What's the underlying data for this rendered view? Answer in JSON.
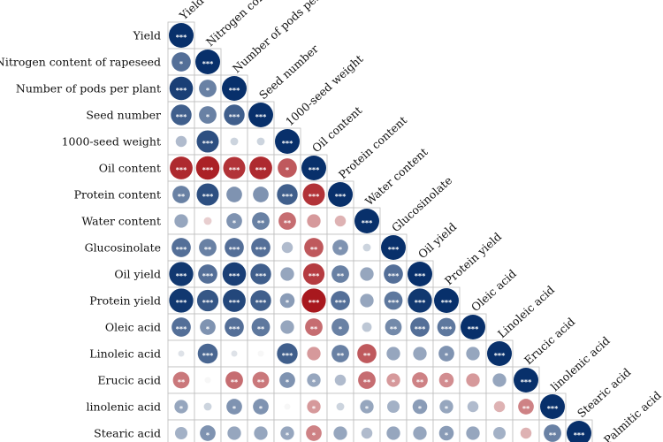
{
  "chart_data": {
    "type": "heatmap",
    "subtype": "correlation-lower-triangle-circles",
    "variables": [
      "Yield",
      "Nitrogen content of rapeseed",
      "Number of pods per plant",
      "Seed number",
      "1000-seed weight",
      "Oil content",
      "Protein content",
      "Water content",
      "Glucosinolate",
      "Oil yield",
      "Protein yield",
      "Oleic acid",
      "Linoleic acid",
      "Erucic acid",
      "linolenic acid",
      "Stearic acid",
      "Palmitic acid"
    ],
    "row_labels": [
      "Yield",
      "Nitrogen content of rapeseed",
      "Number of pods per plant",
      "Seed number",
      "1000-seed weight",
      "Oil content",
      "Protein content",
      "Water content",
      "Glucosinolate",
      "Oil yield",
      "Protein yield",
      "Oleic acid",
      "Linoleic acid",
      "Erucic acid",
      "linolenic acid",
      "Stearic acid"
    ],
    "column_labels": [
      "Yield",
      "Nitrogen content of rapeseed",
      "Number of pods per plant",
      "Seed number",
      "1000-seed weight",
      "Oil content",
      "Protein content",
      "Water content",
      "Glucosinolate",
      "Oil yield",
      "Protein yield",
      "Oleic acid",
      "Linoleic acid",
      "Erucic acid",
      "linolenic acid",
      "Stearic acid",
      "Palmitic acid"
    ],
    "value_range": [
      -1,
      1
    ],
    "significance_marker": "*",
    "colors": {
      "negative": "#a50f15",
      "neutral": "#f7f7f7",
      "positive": "#08306b"
    },
    "correlations": [
      [
        1.0
      ],
      [
        0.6,
        1.0
      ],
      [
        0.9,
        0.5,
        1.0
      ],
      [
        0.7,
        0.5,
        0.7,
        1.0
      ],
      [
        0.2,
        0.8,
        0.1,
        0.1,
        1.0
      ],
      [
        -0.85,
        -0.9,
        -0.8,
        -0.85,
        -0.6,
        1.0
      ],
      [
        0.5,
        0.8,
        0.4,
        0.4,
        0.7,
        -0.8,
        1.0
      ],
      [
        0.3,
        -0.1,
        0.4,
        0.5,
        -0.5,
        -0.3,
        -0.2,
        1.0
      ],
      [
        0.6,
        0.5,
        0.6,
        0.6,
        0.2,
        -0.6,
        0.4,
        0.1,
        1.0
      ],
      [
        0.95,
        0.6,
        0.9,
        0.7,
        0.3,
        -0.75,
        0.5,
        0.3,
        0.6,
        1.0
      ],
      [
        0.95,
        0.75,
        0.85,
        0.7,
        0.35,
        -0.95,
        0.6,
        0.3,
        0.55,
        0.95,
        1.0
      ],
      [
        0.6,
        0.4,
        0.6,
        0.55,
        0.3,
        -0.5,
        0.5,
        0.15,
        0.45,
        0.6,
        0.55,
        1.0
      ],
      [
        0.05,
        0.65,
        0.05,
        0.0,
        0.7,
        -0.3,
        0.5,
        -0.6,
        0.3,
        0.3,
        0.4,
        0.3,
        1.0
      ],
      [
        -0.45,
        0.0,
        -0.5,
        -0.45,
        0.4,
        0.3,
        0.2,
        -0.5,
        -0.3,
        -0.4,
        -0.35,
        -0.3,
        0.3,
        1.0
      ],
      [
        0.3,
        0.1,
        0.4,
        0.4,
        0.0,
        -0.3,
        0.1,
        0.3,
        0.25,
        0.35,
        0.3,
        0.2,
        -0.2,
        -0.4,
        1.0
      ],
      [
        0.25,
        0.4,
        0.3,
        0.3,
        0.3,
        -0.4,
        0.3,
        0.2,
        0.3,
        0.3,
        0.35,
        0.3,
        0.25,
        -0.2,
        0.5,
        1.0
      ]
    ],
    "significance_stars": [
      [
        3
      ],
      [
        1,
        3
      ],
      [
        3,
        1,
        3
      ],
      [
        3,
        1,
        3,
        3
      ],
      [
        0,
        3,
        0,
        0,
        3
      ],
      [
        3,
        3,
        3,
        3,
        1,
        3
      ],
      [
        2,
        3,
        0,
        0,
        3,
        3,
        3
      ],
      [
        0,
        0,
        1,
        2,
        2,
        0,
        0,
        3
      ],
      [
        3,
        2,
        3,
        3,
        0,
        2,
        1,
        0,
        3
      ],
      [
        3,
        3,
        3,
        3,
        0,
        3,
        2,
        0,
        3,
        3
      ],
      [
        3,
        3,
        3,
        3,
        1,
        3,
        3,
        0,
        3,
        3,
        3
      ],
      [
        3,
        1,
        3,
        2,
        0,
        2,
        1,
        0,
        2,
        3,
        3,
        3
      ],
      [
        0,
        3,
        0,
        0,
        3,
        0,
        2,
        2,
        0,
        0,
        1,
        0,
        3
      ],
      [
        2,
        0,
        2,
        2,
        1,
        1,
        0,
        2,
        1,
        2,
        1,
        0,
        0,
        3
      ],
      [
        1,
        0,
        1,
        1,
        0,
        1,
        0,
        1,
        0,
        1,
        1,
        0,
        0,
        2,
        3
      ],
      [
        0,
        1,
        0,
        0,
        1,
        1,
        0,
        0,
        0,
        0,
        1,
        0,
        0,
        0,
        2,
        3
      ]
    ]
  }
}
